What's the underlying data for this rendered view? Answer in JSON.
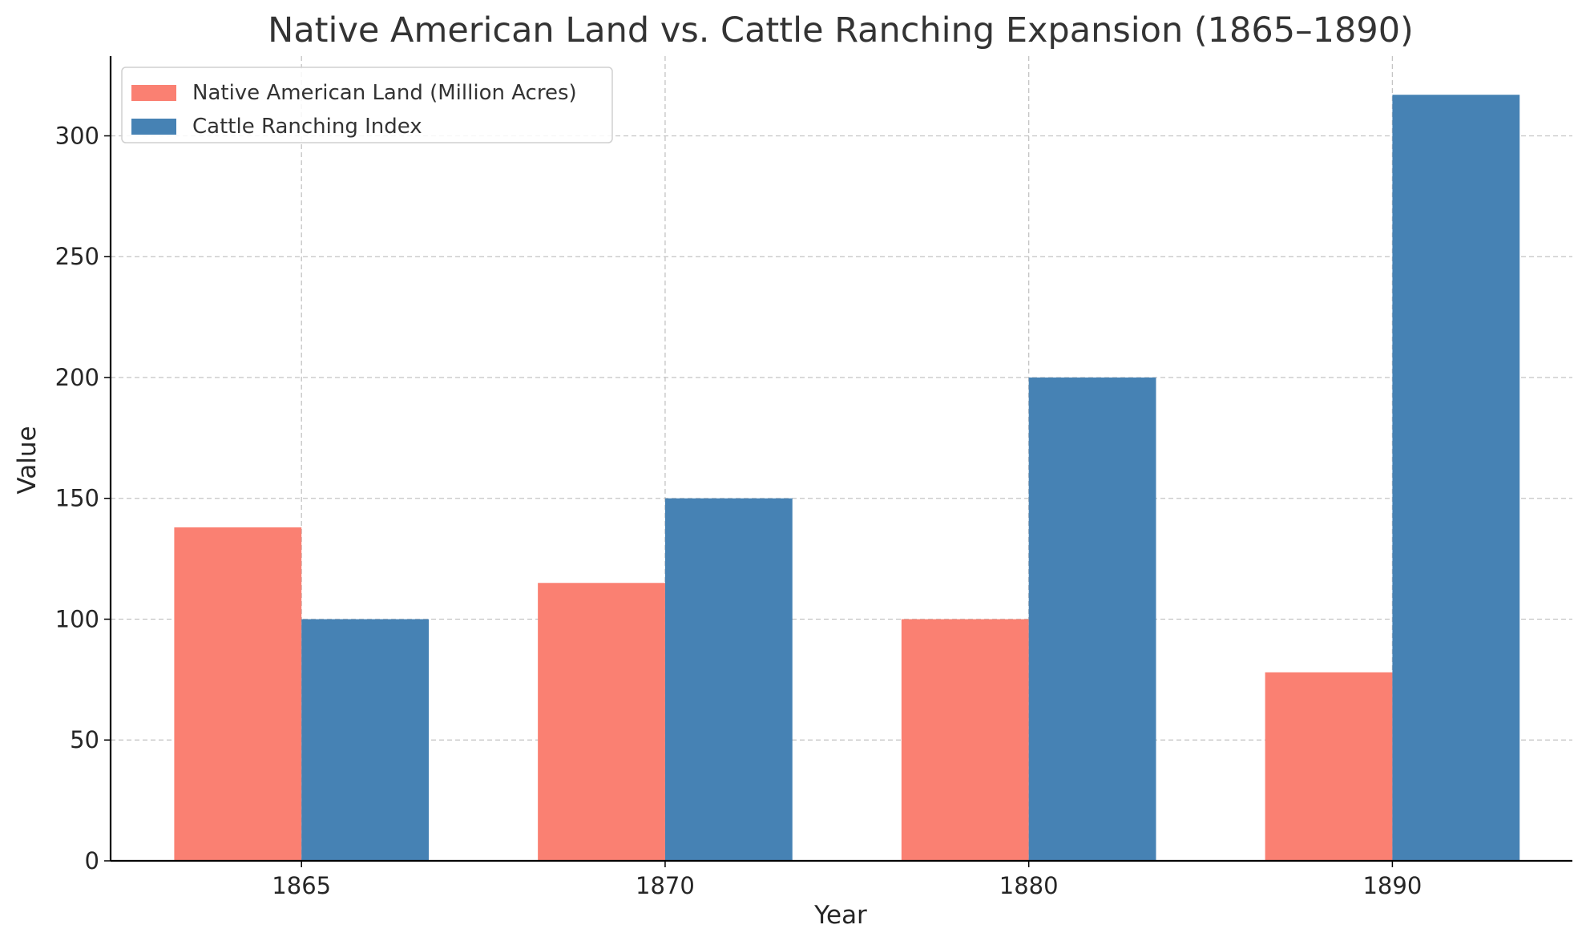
{
  "chart_data": {
    "type": "bar",
    "title": "Native American Land vs. Cattle Ranching Expansion (1865–1890)",
    "xlabel": "Year",
    "ylabel": "Value",
    "categories": [
      "1865",
      "1870",
      "1880",
      "1890"
    ],
    "series": [
      {
        "name": "Native American Land (Million Acres)",
        "values": [
          138,
          115,
          100,
          78
        ],
        "color": "#FA8072"
      },
      {
        "name": "Cattle Ranching Index",
        "values": [
          100,
          150,
          200,
          317
        ],
        "color": "#4682B4"
      }
    ],
    "ylim": [
      0,
      333
    ],
    "yticks": [
      0,
      50,
      100,
      150,
      200,
      250,
      300
    ],
    "grid": true,
    "legend_position": "top-left"
  }
}
